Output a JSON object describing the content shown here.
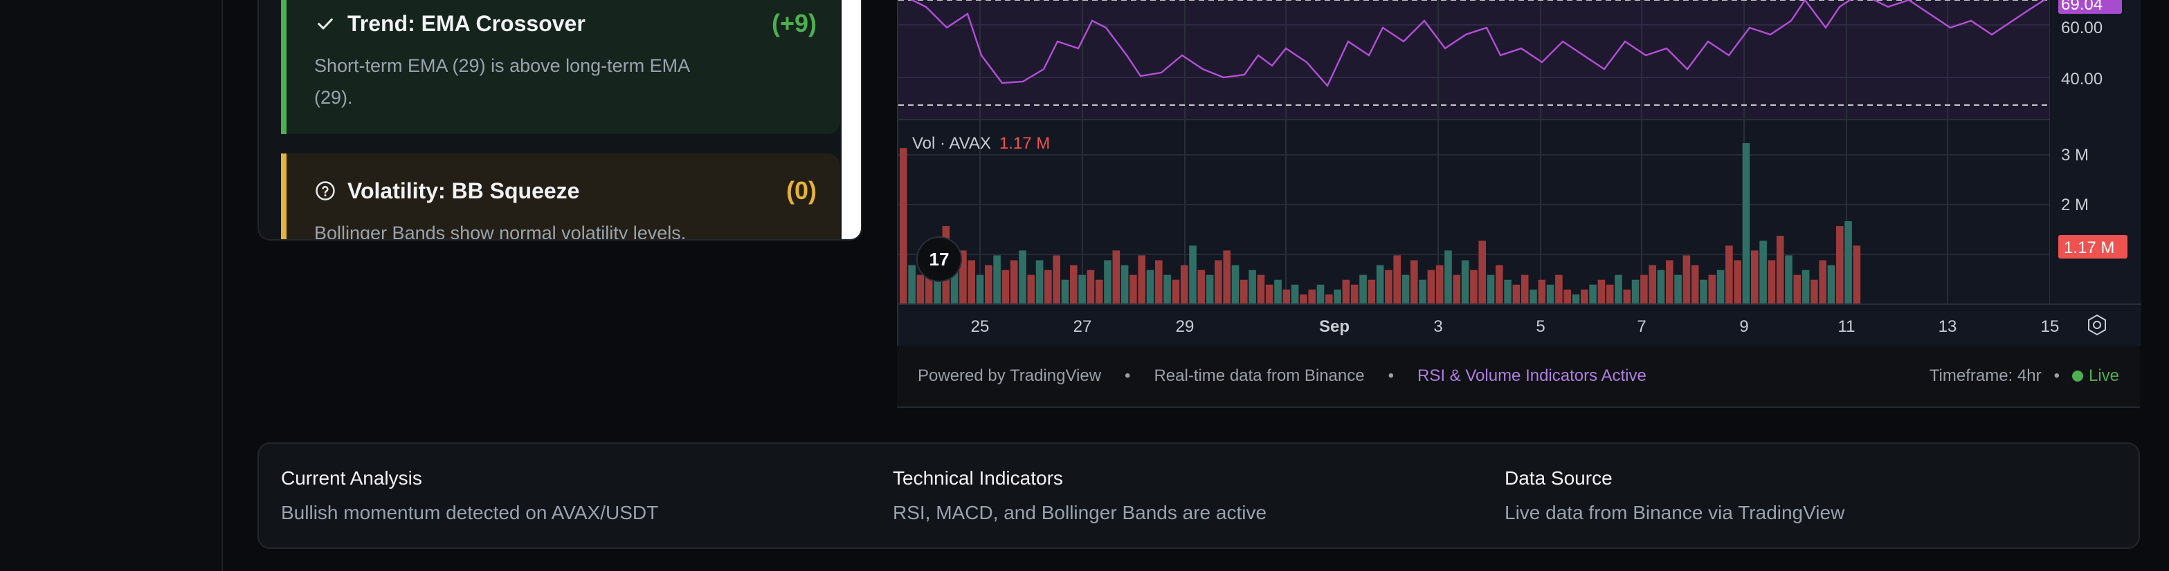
{
  "signals": [
    {
      "icon": "check-icon",
      "title": "Trend: EMA Crossover",
      "score": "(+9)",
      "desc": "Short-term EMA (29) is above long-term EMA (29).",
      "color": "#4caf50"
    },
    {
      "icon": "question-circle-icon",
      "title": "Volatility: BB Squeeze",
      "score": "(0)",
      "desc": "Bollinger Bands show normal volatility levels.",
      "color": "#e5b33a"
    }
  ],
  "chart": {
    "rsi_axis": [
      "69.04",
      "60.00",
      "40.00"
    ],
    "vol_label_prefix": "Vol · AVAX",
    "vol_label_value": "1.17 M",
    "vol_axis": [
      "3 M",
      "2 M"
    ],
    "vol_current_badge": "1.17 M",
    "x_ticks": [
      "25",
      "27",
      "29",
      "Sep",
      "3",
      "5",
      "7",
      "9",
      "11",
      "13",
      "15"
    ],
    "logo": "17",
    "colors": {
      "rsi_line": "#b34fd6",
      "vol_up": "#2f6f66",
      "vol_down": "#9c3b3b",
      "badge": "#ef5350",
      "rsi_badge": "#a74ccf"
    }
  },
  "footer": {
    "powered": "Powered by TradingView",
    "realtime": "Real-time data from Binance",
    "indicators": "RSI & Volume Indicators Active",
    "timeframe": "Timeframe: 4hr",
    "live": "Live"
  },
  "info": [
    {
      "title": "Current Analysis",
      "text": "Bullish momentum detected on AVAX/USDT"
    },
    {
      "title": "Technical Indicators",
      "text": "RSI, MACD, and Bollinger Bands are active"
    },
    {
      "title": "Data Source",
      "text": "Live data from Binance via TradingView"
    }
  ],
  "chart_data": {
    "type": "bar",
    "title": "",
    "series": [
      {
        "values": [
          3.2,
          0.8,
          0.6,
          0.9,
          1.2,
          1.6,
          0.7,
          1.1,
          0.9,
          0.6,
          0.8,
          1.0,
          0.7,
          0.9,
          1.1,
          0.6,
          0.9,
          0.7,
          1.0,
          0.5,
          0.8,
          0.6,
          0.7,
          0.5,
          0.9,
          1.1,
          0.8,
          0.6,
          1.0,
          0.7,
          0.9,
          0.6,
          0.5,
          0.8,
          1.2,
          0.7,
          0.6,
          0.9,
          1.1,
          0.8,
          0.5,
          0.7,
          0.6,
          0.4,
          0.5,
          0.3,
          0.4,
          0.2,
          0.3,
          0.4,
          0.2,
          0.3,
          0.5,
          0.4,
          0.6,
          0.5,
          0.8,
          0.7,
          1.0,
          0.6,
          0.9,
          0.5,
          0.7,
          0.8,
          1.1,
          0.6,
          0.9,
          0.7,
          1.3,
          0.6,
          0.8,
          0.5,
          0.4,
          0.6,
          0.3,
          0.5,
          0.4,
          0.6,
          0.3,
          0.2,
          0.3,
          0.4,
          0.5,
          0.4,
          0.6,
          0.3,
          0.5,
          0.6,
          0.8,
          0.7,
          0.9,
          0.6,
          1.0,
          0.8,
          0.5,
          0.6,
          0.7,
          1.2,
          0.9,
          3.3,
          1.1,
          1.3,
          0.9,
          1.4,
          1.0,
          0.6,
          0.7,
          0.5,
          0.9,
          0.8,
          1.6,
          1.7,
          1.2
        ]
      }
    ],
    "ylabel": "Volume",
    "ylim": [
      0,
      3.4
    ]
  }
}
